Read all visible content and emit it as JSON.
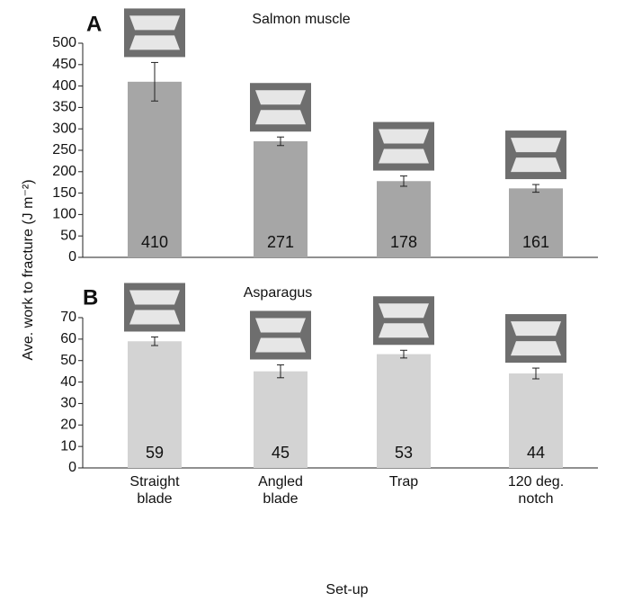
{
  "chart_data": [
    {
      "type": "bar",
      "panel_label": "A",
      "title": "Salmon muscle",
      "ylabel": "Ave. work to fracture (J m⁻²)",
      "values": [
        410,
        271,
        178,
        161
      ],
      "errors": [
        45,
        10,
        12,
        9
      ],
      "color": "#a6a6a6",
      "ylim": [
        0,
        500
      ],
      "yticks": [
        0,
        50,
        100,
        150,
        200,
        250,
        300,
        350,
        400,
        450,
        500
      ]
    },
    {
      "type": "bar",
      "panel_label": "B",
      "title": "Asparagus",
      "xlabel": "Set-up",
      "categories": [
        "Straight blade",
        "Angled blade",
        "Trap",
        "120 deg. notch"
      ],
      "values": [
        59,
        45,
        53,
        44
      ],
      "errors": [
        2,
        3,
        1.8,
        2.5
      ],
      "color": "#d3d3d3",
      "ylim": [
        0,
        70
      ],
      "yticks": [
        0,
        10,
        20,
        30,
        40,
        50,
        60,
        70
      ]
    }
  ]
}
